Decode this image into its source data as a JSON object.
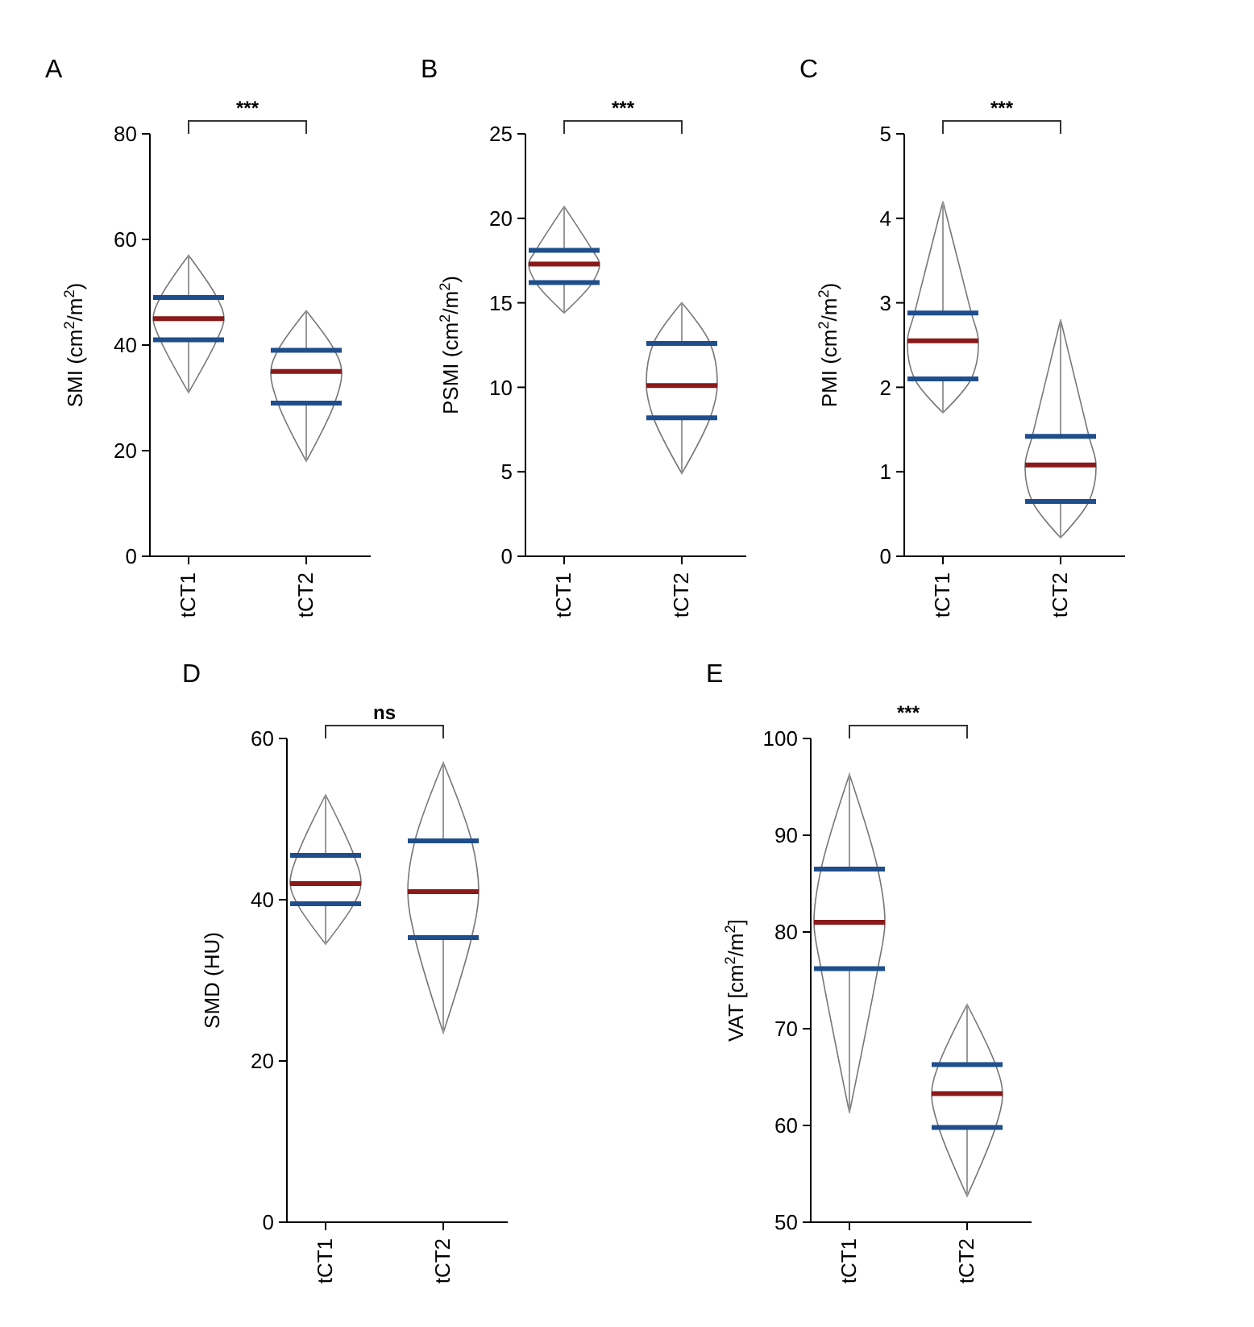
{
  "chart_data": [
    {
      "type": "box",
      "title": "A",
      "ylabel": "SMI (cm$^{2}$/m$^{2}$)",
      "categories": [
        "tCT1",
        "tCT2"
      ],
      "ylim": [
        0,
        80
      ],
      "yticks": [
        0,
        20,
        40,
        60,
        80
      ],
      "annotations": [
        "***"
      ],
      "boxes": [
        {
          "low": 31,
          "q1": 41,
          "median": 45,
          "q3": 49,
          "high": 57
        },
        {
          "low": 18,
          "q1": 29,
          "median": 35,
          "q3": 39,
          "high": 46.5
        }
      ]
    },
    {
      "type": "box",
      "title": "B",
      "ylabel": "PSMI (cm$^{2}$/m$^{2}$)",
      "categories": [
        "tCT1",
        "tCT2"
      ],
      "ylim": [
        0,
        25
      ],
      "yticks": [
        0,
        5,
        10,
        15,
        20,
        25
      ],
      "annotations": [
        "***"
      ],
      "boxes": [
        {
          "low": 14.4,
          "q1": 16.2,
          "median": 17.3,
          "q3": 18.1,
          "high": 20.7
        },
        {
          "low": 4.9,
          "q1": 8.2,
          "median": 10.1,
          "q3": 12.6,
          "high": 15
        }
      ]
    },
    {
      "type": "box",
      "title": "C",
      "ylabel": "PMI (cm$^{2}$/m$^{2}$)",
      "categories": [
        "tCT1",
        "tCT2"
      ],
      "ylim": [
        0,
        5
      ],
      "yticks": [
        0,
        1,
        2,
        3,
        4,
        5
      ],
      "annotations": [
        "***"
      ],
      "boxes": [
        {
          "low": 1.7,
          "q1": 2.1,
          "median": 2.55,
          "q3": 2.88,
          "high": 4.2
        },
        {
          "low": 0.22,
          "q1": 0.65,
          "median": 1.08,
          "q3": 1.42,
          "high": 2.8
        }
      ]
    },
    {
      "type": "box",
      "title": "D",
      "ylabel": "SMD (HU)",
      "categories": [
        "tCT1",
        "tCT2"
      ],
      "ylim": [
        0,
        60
      ],
      "yticks": [
        0,
        20,
        40,
        60
      ],
      "annotations": [
        "ns"
      ],
      "boxes": [
        {
          "low": 34.5,
          "q1": 39.5,
          "median": 42,
          "q3": 45.5,
          "high": 53
        },
        {
          "low": 23.5,
          "q1": 35.3,
          "median": 41,
          "q3": 47.3,
          "high": 57
        }
      ]
    },
    {
      "type": "box",
      "title": "E",
      "ylabel": "VAT [cm$^{2}$/m$^{2}$]",
      "categories": [
        "tCT1",
        "tCT2"
      ],
      "ylim": [
        50,
        100
      ],
      "yticks": [
        50,
        60,
        70,
        80,
        90,
        100
      ],
      "annotations": [
        "***"
      ],
      "boxes": [
        {
          "low": 61.3,
          "q1": 76.2,
          "median": 81,
          "q3": 86.5,
          "high": 96.3
        },
        {
          "low": 52.7,
          "q1": 59.8,
          "median": 63.3,
          "q3": 66.3,
          "high": 72.5
        }
      ]
    }
  ]
}
